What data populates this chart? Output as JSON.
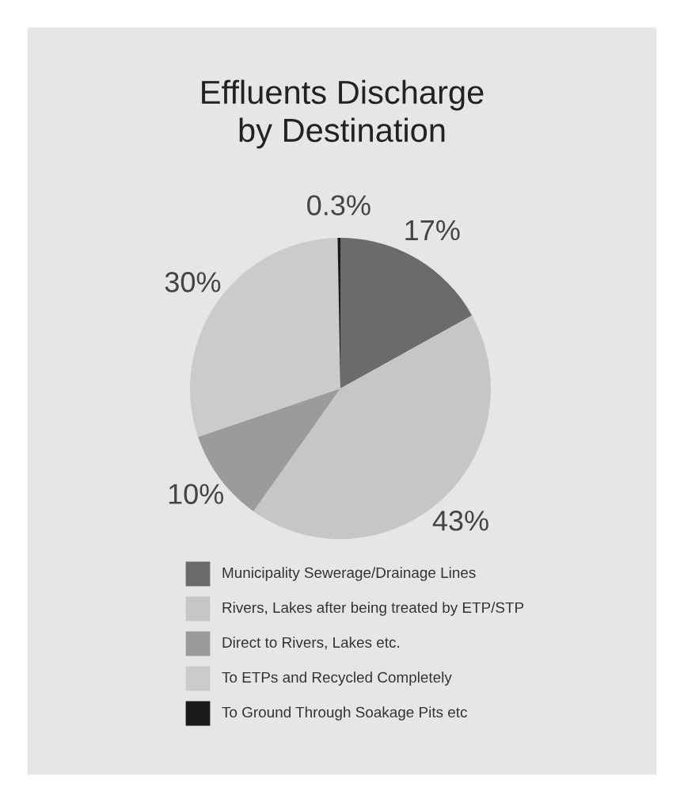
{
  "chart_data": {
    "type": "pie",
    "title": "Effluents Discharge\nby Destination",
    "categories": [
      "Municipality Sewerage/Drainage Lines",
      "Rivers, Lakes after being treated by ETP/STP",
      "Direct to Rivers, Lakes etc.",
      "To ETPs and Recycled Completely",
      "To Ground Through Soakage Pits etc"
    ],
    "values": [
      17,
      43,
      10,
      30,
      0.3
    ],
    "value_labels": [
      "17%",
      "43%",
      "10%",
      "30%",
      "0.3%"
    ],
    "colors": [
      "#6b6b6c",
      "#c6c6c6",
      "#9b9b9b",
      "#cbcbcb",
      "#1a1a1a"
    ],
    "legend": "bottom"
  }
}
